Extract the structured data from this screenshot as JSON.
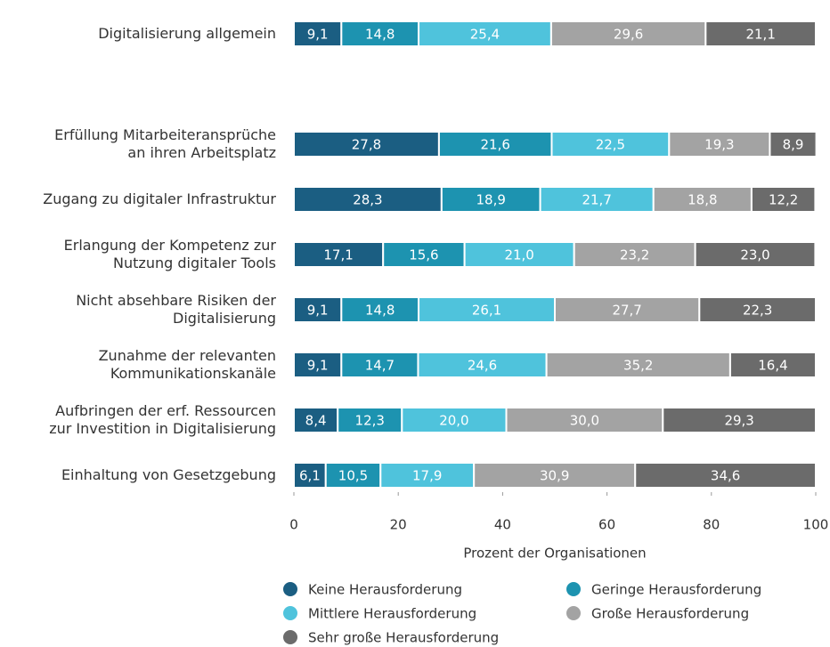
{
  "chart_data": {
    "type": "stacked_barh",
    "categories": [
      "Digitalisierung allgemein",
      "Erfüllung Mitarbeiteransprüche\nan ihren Arbeitsplatz",
      "Zugang zu digitaler Infrastruktur",
      "Erlangung der Kompetenz zur\nNutzung digitaler Tools",
      "Nicht absehbare Risiken der\nDigitalisierung",
      "Zunahme der relevanten\nKommunikationskanäle",
      "Aufbringen der erf. Ressourcen\nzur Investition in Digitalisierung",
      "Einhaltung von Gesetzgebung"
    ],
    "series": [
      {
        "name": "Keine Herausforderung",
        "color": "#1b5e82",
        "values": [
          9.1,
          27.8,
          28.3,
          17.1,
          9.1,
          9.1,
          8.4,
          6.1
        ],
        "value_labels": [
          "9,1",
          "27,8",
          "28,3",
          "17,1",
          "9,1",
          "9,1",
          "8,4",
          "6,1"
        ]
      },
      {
        "name": "Geringe Herausforderung",
        "color": "#1d93b0",
        "values": [
          14.8,
          21.6,
          18.9,
          15.6,
          14.8,
          14.7,
          12.3,
          10.5
        ],
        "value_labels": [
          "14,8",
          "21,6",
          "18,9",
          "15,6",
          "14,8",
          "14,7",
          "12,3",
          "10,5"
        ]
      },
      {
        "name": "Mittlere Herausforderung",
        "color": "#4fc3dc",
        "values": [
          25.4,
          22.5,
          21.7,
          21.0,
          26.1,
          24.6,
          20.0,
          17.9
        ],
        "value_labels": [
          "25,4",
          "22,5",
          "21,7",
          "21,0",
          "26,1",
          "24,6",
          "20,0",
          "17,9"
        ]
      },
      {
        "name": "Große Herausforderung",
        "color": "#a3a3a3",
        "values": [
          29.6,
          19.3,
          18.8,
          23.2,
          27.7,
          35.2,
          30.0,
          30.9
        ],
        "value_labels": [
          "29,6",
          "19,3",
          "18,8",
          "23,2",
          "27,7",
          "35,2",
          "30,0",
          "30,9"
        ]
      },
      {
        "name": "Sehr große Herausforderung",
        "color": "#6b6b6b",
        "values": [
          21.1,
          8.9,
          12.2,
          23.0,
          22.3,
          16.4,
          29.3,
          34.6
        ],
        "value_labels": [
          "21,1",
          "8,9",
          "12,2",
          "23,0",
          "22,3",
          "16,4",
          "29,3",
          "34,6"
        ]
      }
    ],
    "xlabel": "Prozent der Organisationen",
    "xlim": [
      0,
      100
    ],
    "xticks": [
      0,
      20,
      40,
      60,
      80,
      100
    ],
    "grid": false
  }
}
